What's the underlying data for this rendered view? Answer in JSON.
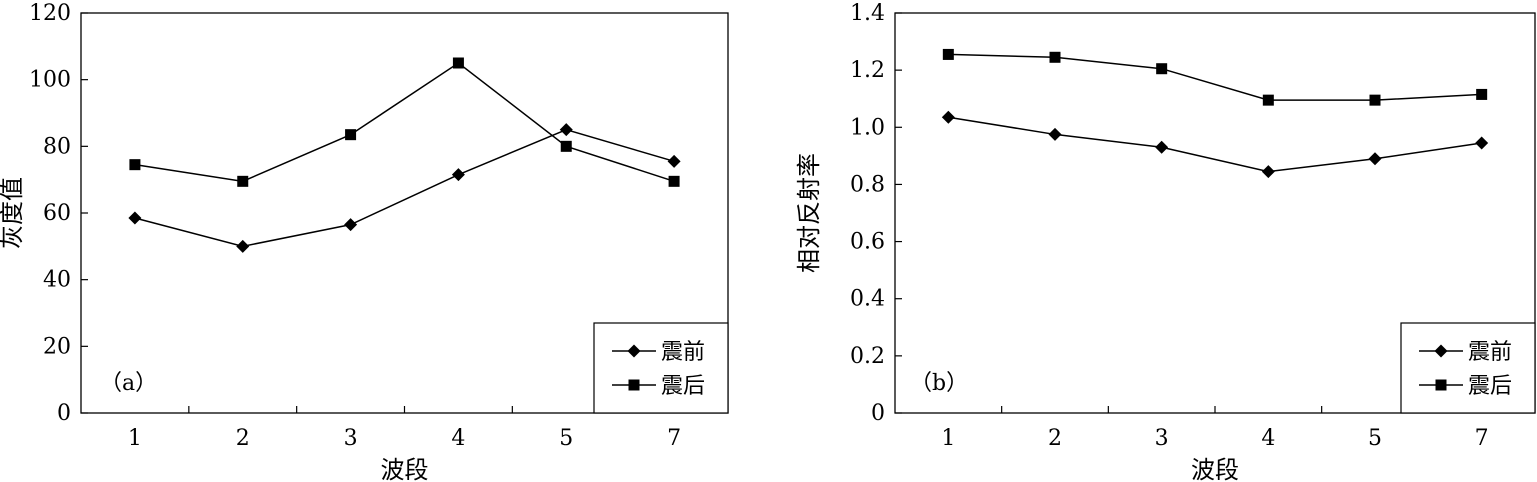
{
  "chart_data": [
    {
      "type": "line",
      "panel_label": "（a）",
      "categories": [
        "1",
        "2",
        "3",
        "4",
        "5",
        "7"
      ],
      "xlabel": "波段",
      "ylabel": "灰度值",
      "ylim": [
        0,
        120
      ],
      "yticks": [
        "0",
        "20",
        "40",
        "60",
        "80",
        "100",
        "120"
      ],
      "grid": false,
      "legend_position": "bottom-right",
      "series": [
        {
          "name": "震前",
          "marker": "diamond",
          "values": [
            58.5,
            50,
            56.5,
            71.5,
            85,
            75.5
          ]
        },
        {
          "name": "震后",
          "marker": "square",
          "values": [
            74.5,
            69.5,
            83.5,
            105,
            80,
            69.5
          ]
        }
      ]
    },
    {
      "type": "line",
      "panel_label": "（b）",
      "categories": [
        "1",
        "2",
        "3",
        "4",
        "5",
        "7"
      ],
      "xlabel": "波段",
      "ylabel": "相对反射率",
      "ylim": [
        0,
        1.4
      ],
      "yticks": [
        "0",
        "0.2",
        "0.4",
        "0.6",
        "0.8",
        "1.0",
        "1.2",
        "1.4"
      ],
      "grid": false,
      "legend_position": "bottom-right",
      "series": [
        {
          "name": "震前",
          "marker": "diamond",
          "values": [
            1.035,
            0.975,
            0.93,
            0.845,
            0.89,
            0.945
          ]
        },
        {
          "name": "震后",
          "marker": "square",
          "values": [
            1.255,
            1.245,
            1.205,
            1.095,
            1.095,
            1.115
          ]
        }
      ]
    }
  ]
}
